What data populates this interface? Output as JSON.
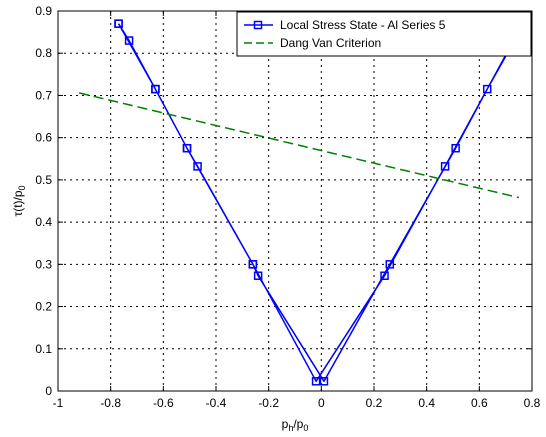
{
  "chart_data": {
    "type": "line",
    "xlabel_main": "p",
    "xlabel_sub1": "h",
    "xlabel_mid": "/p",
    "xlabel_sub2": "0",
    "ylabel_main": "τ(t)/p",
    "ylabel_sub": "0",
    "xlim": [
      -1,
      0.8
    ],
    "ylim": [
      0,
      0.9
    ],
    "xticks": [
      -1,
      -0.8,
      -0.6,
      -0.4,
      -0.2,
      0,
      0.2,
      0.4,
      0.6,
      0.8
    ],
    "xtick_labels": [
      "-1",
      "-0.8",
      "-0.6",
      "-0.4",
      "-0.2",
      "0",
      "0.2",
      "0.4",
      "0.6",
      "0.8"
    ],
    "yticks": [
      0,
      0.1,
      0.2,
      0.3,
      0.4,
      0.5,
      0.6,
      0.7,
      0.8,
      0.9
    ],
    "ytick_labels": [
      "0",
      "0.1",
      "0.2",
      "0.3",
      "0.4",
      "0.5",
      "0.6",
      "0.7",
      "0.8",
      "0.9"
    ],
    "grid": true,
    "legend_position": "top-right",
    "series": [
      {
        "name": "Local Stress State - Al Series 5",
        "color": "#0000ff",
        "style": "solid",
        "marker": "square",
        "x": [
          -0.77,
          -0.73,
          -0.63,
          -0.51,
          -0.47,
          -0.26,
          -0.24,
          0.01,
          0.26,
          0.51,
          0.63,
          0.77,
          0.73,
          0.47,
          0.24,
          -0.02,
          -0.26,
          -0.51,
          -0.63,
          -0.77
        ],
        "y": [
          0.87,
          0.83,
          0.715,
          0.575,
          0.532,
          0.3,
          0.273,
          0.023,
          0.3,
          0.575,
          0.715,
          0.87,
          0.83,
          0.532,
          0.273,
          0.023,
          0.3,
          0.575,
          0.715,
          0.87
        ]
      },
      {
        "name": "Dang Van Criterion",
        "color": "#008000",
        "style": "dashed",
        "marker": "none",
        "x": [
          -0.92,
          0.75
        ],
        "y": [
          0.706,
          0.458
        ]
      }
    ]
  }
}
